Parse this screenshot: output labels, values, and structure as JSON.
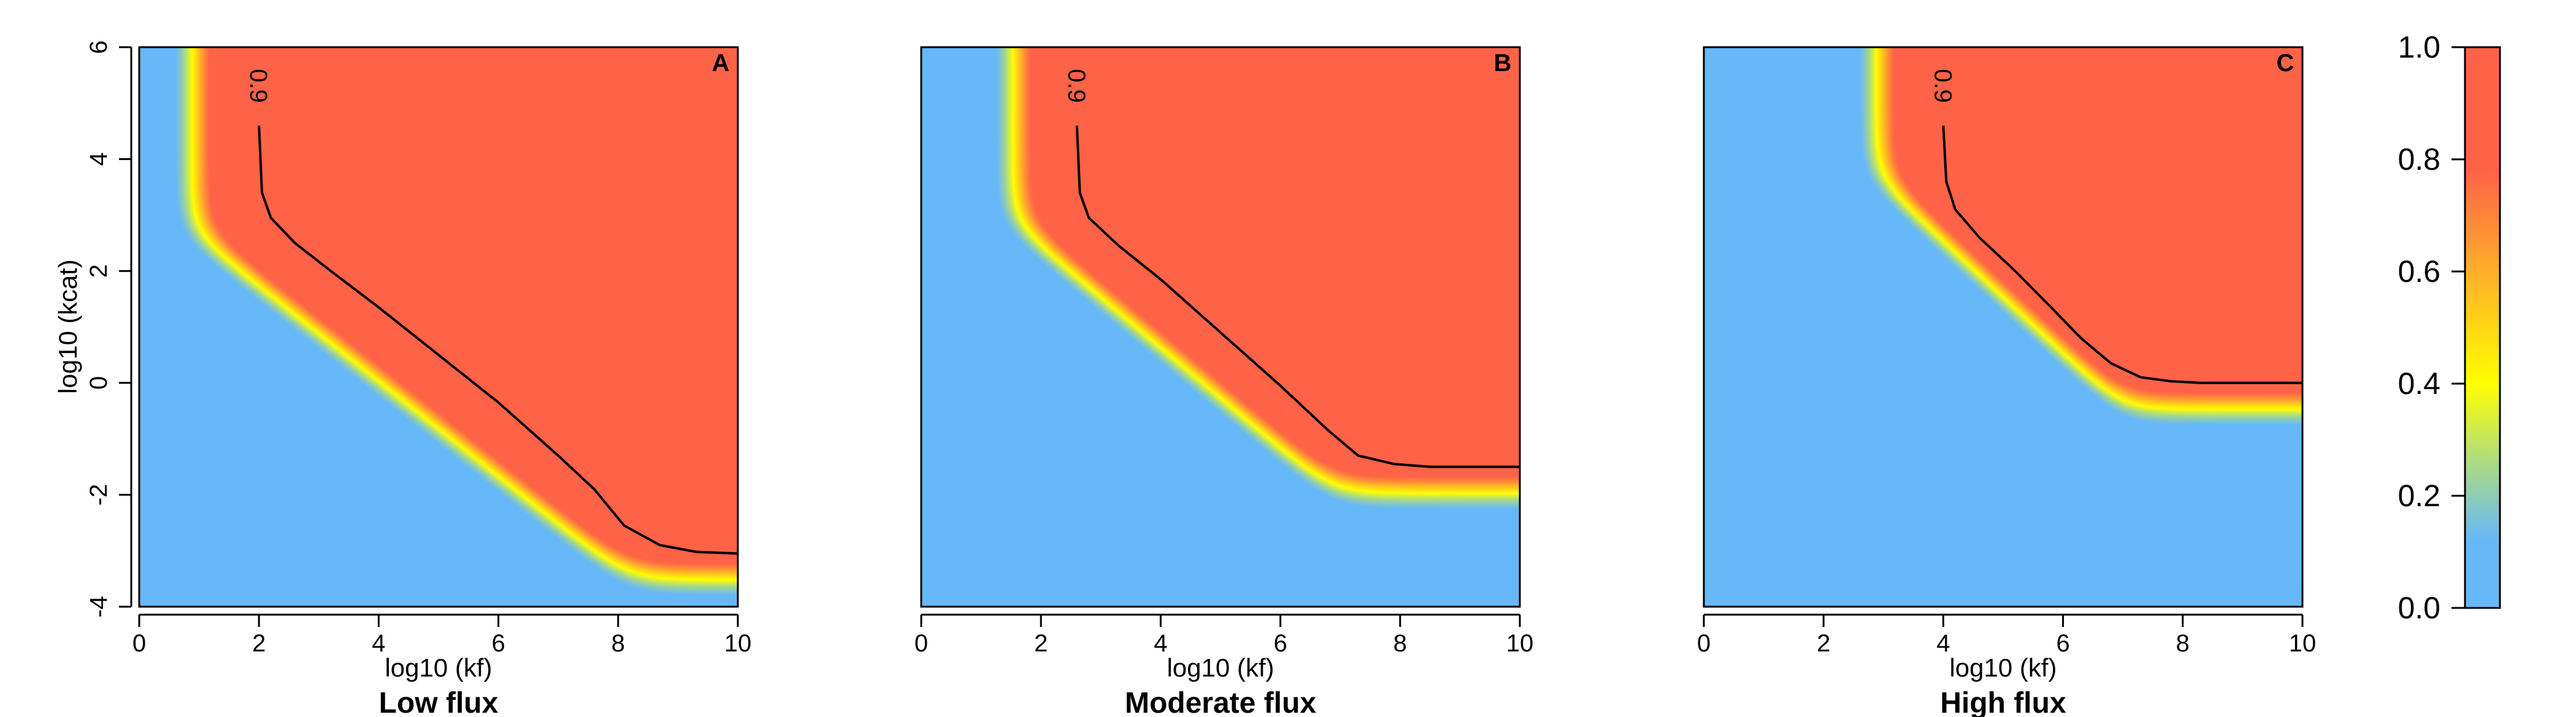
{
  "chart_data": [
    {
      "type": "heatmap",
      "panel_letter": "A",
      "title": "Low flux",
      "xlabel": "log10 (kf)",
      "ylabel": "log10 (kcat)",
      "xlim": [
        0,
        10
      ],
      "ylim": [
        -4,
        6
      ],
      "xticks": [
        0,
        2,
        4,
        6,
        8,
        10
      ],
      "yticks": [
        -4,
        -2,
        0,
        2,
        4,
        6
      ],
      "contour_level_label": "0.9",
      "contour_09": [
        [
          2.0,
          4.6
        ],
        [
          2.05,
          3.4
        ],
        [
          2.2,
          2.95
        ],
        [
          2.6,
          2.5
        ],
        [
          3.2,
          2.0
        ],
        [
          4.0,
          1.35
        ],
        [
          5.0,
          0.5
        ],
        [
          6.0,
          -0.35
        ],
        [
          7.0,
          -1.3
        ],
        [
          7.6,
          -1.9
        ],
        [
          8.1,
          -2.55
        ],
        [
          8.7,
          -2.9
        ],
        [
          9.3,
          -3.02
        ],
        [
          10.0,
          -3.05
        ]
      ],
      "transition": {
        "k_vertical": 1.05,
        "slope": -0.85,
        "c_diag": 3.6,
        "floor": -3.35,
        "width": 0.55
      }
    },
    {
      "type": "heatmap",
      "panel_letter": "B",
      "title": "Moderate flux",
      "xlabel": "log10 (kf)",
      "ylabel": "",
      "xlim": [
        0,
        10
      ],
      "ylim": [
        -4,
        6
      ],
      "xticks": [
        0,
        2,
        4,
        6,
        8,
        10
      ],
      "yticks": [],
      "contour_level_label": "0.9",
      "contour_09": [
        [
          2.6,
          4.6
        ],
        [
          2.65,
          3.4
        ],
        [
          2.8,
          2.95
        ],
        [
          3.3,
          2.45
        ],
        [
          4.0,
          1.85
        ],
        [
          5.0,
          0.9
        ],
        [
          6.0,
          -0.05
        ],
        [
          6.8,
          -0.85
        ],
        [
          7.3,
          -1.3
        ],
        [
          7.9,
          -1.45
        ],
        [
          8.5,
          -1.5
        ],
        [
          10.0,
          -1.5
        ]
      ],
      "transition": {
        "k_vertical": 1.7,
        "slope": -0.9,
        "c_diag": 4.4,
        "floor": -1.8,
        "width": 0.55
      }
    },
    {
      "type": "heatmap",
      "panel_letter": "C",
      "title": "High flux",
      "xlabel": "log10 (kf)",
      "ylabel": "",
      "xlim": [
        0,
        10
      ],
      "ylim": [
        -4,
        6
      ],
      "xticks": [
        0,
        2,
        4,
        6,
        8,
        10
      ],
      "yticks": [],
      "contour_level_label": "0.9",
      "contour_09": [
        [
          4.0,
          4.6
        ],
        [
          4.05,
          3.6
        ],
        [
          4.2,
          3.1
        ],
        [
          4.6,
          2.6
        ],
        [
          5.2,
          2.0
        ],
        [
          5.8,
          1.35
        ],
        [
          6.3,
          0.8
        ],
        [
          6.8,
          0.35
        ],
        [
          7.3,
          0.1
        ],
        [
          7.8,
          0.03
        ],
        [
          8.3,
          0.0
        ],
        [
          10.0,
          0.0
        ]
      ],
      "transition": {
        "k_vertical": 3.05,
        "slope": -1.0,
        "c_diag": 6.7,
        "floor": -0.3,
        "width": 0.55
      }
    }
  ],
  "colorbar": {
    "range": [
      0,
      1
    ],
    "ticks": [
      "0.0",
      "0.2",
      "0.4",
      "0.6",
      "0.8",
      "1.0"
    ],
    "colors": {
      "low": "#66b8f9",
      "mid_low": "#a8d98a",
      "mid": "#ffff00",
      "mid_high": "#ffb626",
      "high": "#ff6347"
    }
  }
}
